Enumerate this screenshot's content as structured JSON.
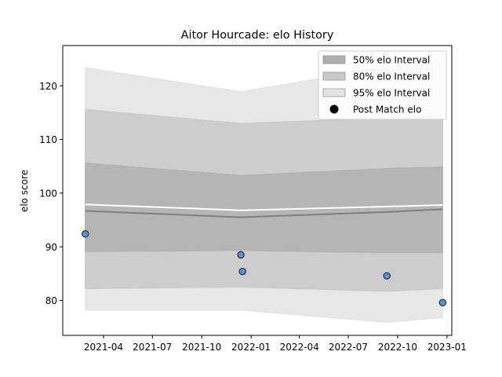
{
  "chart_data": {
    "type": "line",
    "title": "Aitor Hourcade: elo History",
    "xlabel": "",
    "ylabel": "elo score",
    "x_ticks": [
      "2021-04",
      "2021-07",
      "2021-10",
      "2022-01",
      "2022-04",
      "2022-07",
      "2022-10",
      "2023-01"
    ],
    "y_ticks": [
      80,
      90,
      100,
      110,
      120
    ],
    "ylim": [
      73.5,
      127.5
    ],
    "xlim": [
      "2021-01-15",
      "2023-01-10"
    ],
    "legend_position": "top-right",
    "legend": [
      {
        "label": "50% elo Interval",
        "kind": "patch",
        "color": "#b0b0b0"
      },
      {
        "label": "80% elo Interval",
        "kind": "patch",
        "color": "#c8c8c8"
      },
      {
        "label": "95% elo Interval",
        "kind": "patch",
        "color": "#e3e3e3"
      },
      {
        "label": "Post Match elo",
        "kind": "marker",
        "color": "#000000"
      }
    ],
    "band_x": [
      "2021-02-26",
      "2021-12-13",
      "2022-09-11",
      "2022-12-24"
    ],
    "bands": {
      "95": {
        "lower": [
          78.2,
          78.2,
          75.9,
          76.8
        ],
        "upper": [
          123.4,
          118.9,
          123.5,
          125.0
        ],
        "color": "#e3e3e3"
      },
      "80": {
        "lower": [
          82.2,
          82.5,
          81.7,
          82.2
        ],
        "upper": [
          115.6,
          113.0,
          114.0,
          114.5
        ],
        "color": "#c8c8c8"
      },
      "50": {
        "lower": [
          89.1,
          89.3,
          88.9,
          88.9
        ],
        "upper": [
          105.6,
          103.3,
          104.6,
          104.9
        ],
        "color": "#b0b0b0"
      }
    },
    "median_line": {
      "y": [
        96.7,
        95.5,
        96.5,
        97.0
      ],
      "color": "#7f7f7f"
    },
    "mean_line": {
      "y": [
        97.9,
        96.8,
        97.5,
        97.8
      ],
      "color": "#ffffff"
    },
    "points": {
      "x": [
        "2021-02-26",
        "2021-12-13",
        "2021-12-16",
        "2022-09-11",
        "2022-12-24"
      ],
      "y": [
        92.4,
        88.5,
        85.4,
        84.6,
        79.6
      ],
      "color": "#5b8fd9",
      "edge_color": "#1a1a1a"
    }
  }
}
